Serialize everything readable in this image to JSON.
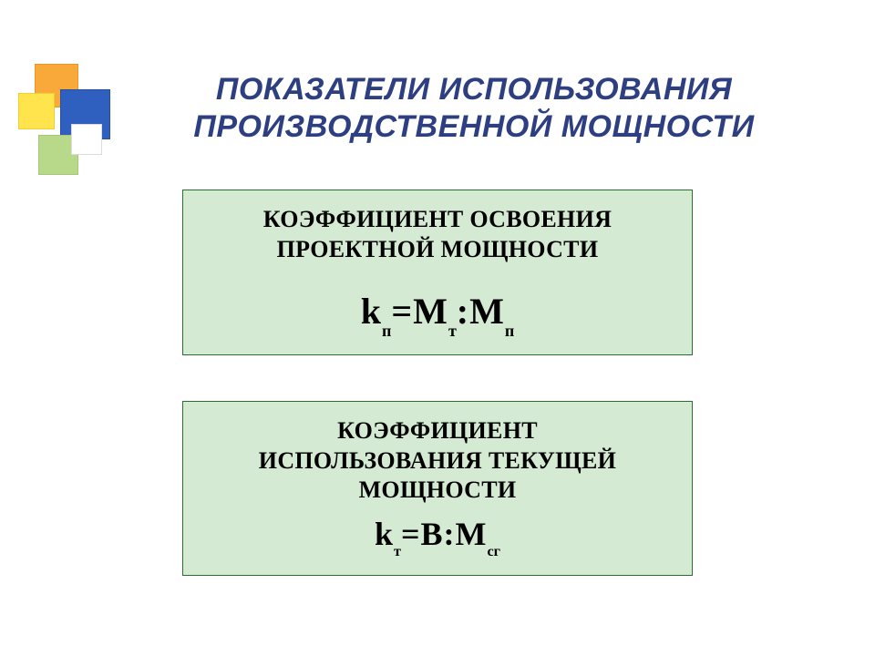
{
  "slide": {
    "title_line1": "ПОКАЗАТЕЛИ ИСПОЛЬЗОВАНИЯ",
    "title_line2": "ПРОИЗВОДСТВЕННОЙ МОЩНОСТИ",
    "title_color": "#2d3f80",
    "title_fontsize_pt": 26,
    "background_color": "#ffffff"
  },
  "decor": {
    "colors": {
      "orange": "#f8a93a",
      "yellow": "#ffe44d",
      "blue": "#2f5fbf",
      "green": "#b8d88a",
      "white": "#ffffff"
    }
  },
  "cards": {
    "background_color": "#d5ead3",
    "border_color": "#2e6b2e",
    "card1": {
      "heading_line1": "КОЭФФИЦИЕНТ ОСВОЕНИЯ",
      "heading_line2": "ПРОЕКТНОЙ МОЩНОСТИ",
      "formula": {
        "lhs_base": "k",
        "lhs_sub": "п",
        "eq": "=",
        "r1_base": "М",
        "r1_sub": "т",
        "sep": ":",
        "r2_base": "М",
        "r2_sub": "п"
      }
    },
    "card2": {
      "heading_line1": "КОЭФФИЦИЕНТ",
      "heading_line2": "ИСПОЛЬЗОВАНИЯ ТЕКУЩЕЙ",
      "heading_line3": "МОЩНОСТИ",
      "formula": {
        "lhs_base": "k",
        "lhs_sub": "т",
        "eq": "=",
        "r1_base": "В",
        "sep": ":",
        "r2_base": "М",
        "r2_sub": "сг"
      }
    }
  }
}
